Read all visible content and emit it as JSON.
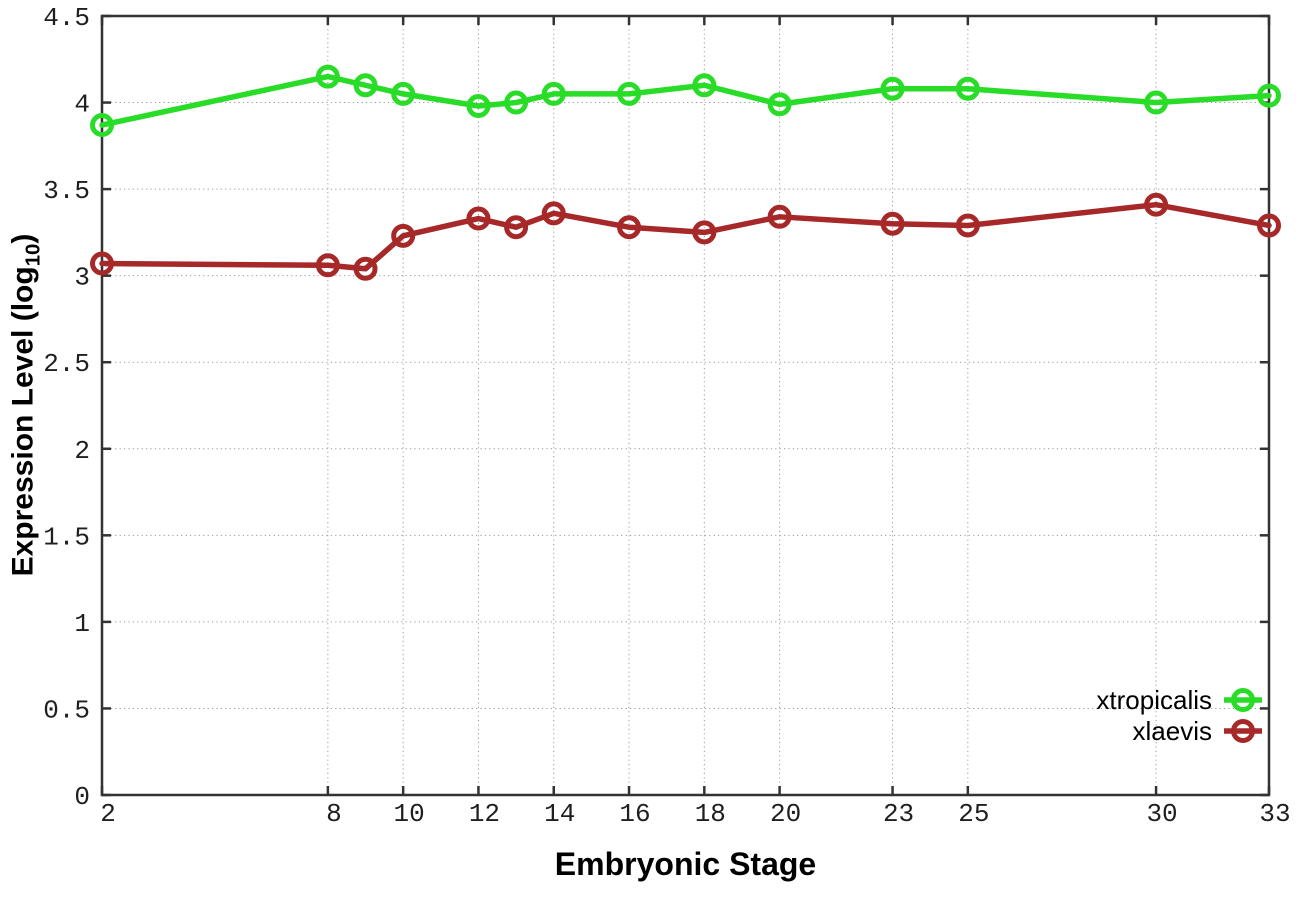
{
  "chart_data": {
    "type": "line",
    "title": "",
    "xlabel": "Embryonic Stage",
    "ylabel": "Expression Level (log10)",
    "ylabel_parts": {
      "prefix": "Expression Level (log",
      "sub": "10",
      "suffix": ")"
    },
    "xlim": [
      2,
      33
    ],
    "ylim": [
      0,
      4.5
    ],
    "grid": true,
    "legend_position": "bottom-right-inside",
    "x_ticks": [
      {
        "v": 2,
        "label": "2"
      },
      {
        "v": 8,
        "label": "8"
      },
      {
        "v": 10,
        "label": "10"
      },
      {
        "v": 12,
        "label": "12"
      },
      {
        "v": 14,
        "label": "14"
      },
      {
        "v": 16,
        "label": "16"
      },
      {
        "v": 18,
        "label": "18"
      },
      {
        "v": 20,
        "label": "20"
      },
      {
        "v": 23,
        "label": "23"
      },
      {
        "v": 25,
        "label": "25"
      },
      {
        "v": 30,
        "label": "30"
      },
      {
        "v": 33,
        "label": "33"
      }
    ],
    "y_ticks": [
      {
        "v": 0,
        "label": "0"
      },
      {
        "v": 0.5,
        "label": "0.5"
      },
      {
        "v": 1,
        "label": "1"
      },
      {
        "v": 1.5,
        "label": "1.5"
      },
      {
        "v": 2,
        "label": "2"
      },
      {
        "v": 2.5,
        "label": "2.5"
      },
      {
        "v": 3,
        "label": "3"
      },
      {
        "v": 3.5,
        "label": "3.5"
      },
      {
        "v": 4,
        "label": "4"
      },
      {
        "v": 4.5,
        "label": "4.5"
      }
    ],
    "x": [
      2,
      8,
      9,
      10,
      12,
      13,
      14,
      16,
      18,
      20,
      23,
      25,
      30,
      33
    ],
    "series": [
      {
        "name": "xtropicalis",
        "color": "#28dc28",
        "values": [
          3.87,
          4.15,
          4.1,
          4.05,
          3.98,
          4.0,
          4.05,
          4.05,
          4.1,
          3.99,
          4.08,
          4.08,
          4.0,
          4.04
        ]
      },
      {
        "name": "xlaevis",
        "color": "#a62828",
        "values": [
          3.07,
          3.06,
          3.04,
          3.23,
          3.33,
          3.28,
          3.36,
          3.28,
          3.25,
          3.34,
          3.3,
          3.29,
          3.41,
          3.29
        ]
      }
    ]
  },
  "styles": {
    "background": "#ffffff",
    "axis_color": "#333333",
    "grid_color": "#9a9a9a",
    "tick_label_color": "#1f1f1f",
    "legend_text_color": "#000000"
  }
}
